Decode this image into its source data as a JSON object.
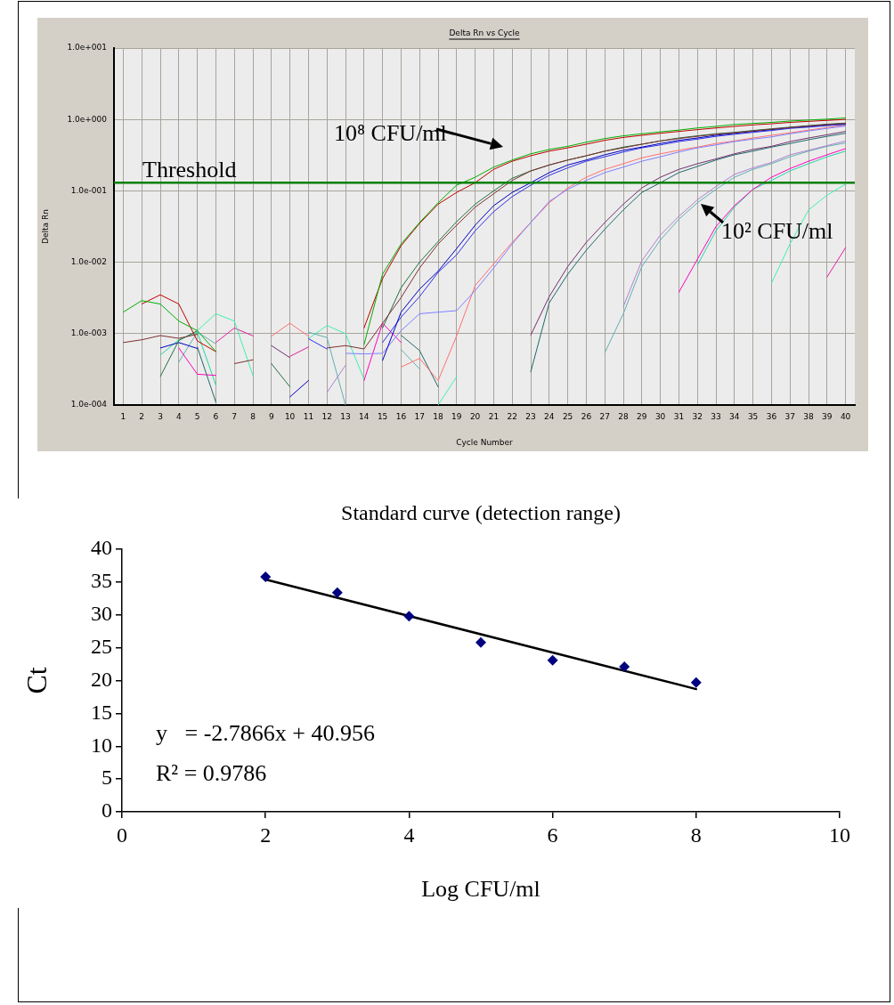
{
  "chart_data": [
    {
      "type": "line",
      "title": "Delta Rn vs Cycle",
      "xlabel": "Cycle Number",
      "ylabel": "Delta Rn",
      "x": [
        1,
        2,
        3,
        4,
        5,
        6,
        7,
        8,
        9,
        10,
        11,
        12,
        13,
        14,
        15,
        16,
        17,
        18,
        19,
        20,
        21,
        22,
        23,
        24,
        25,
        26,
        27,
        28,
        29,
        30,
        31,
        32,
        33,
        34,
        35,
        36,
        37,
        38,
        39,
        40
      ],
      "xlim": [
        0.5,
        40.5
      ],
      "xticks": [
        1,
        2,
        3,
        4,
        5,
        6,
        7,
        8,
        9,
        10,
        11,
        12,
        13,
        14,
        15,
        16,
        17,
        18,
        19,
        20,
        21,
        22,
        23,
        24,
        25,
        26,
        27,
        28,
        29,
        30,
        31,
        32,
        33,
        34,
        35,
        36,
        37,
        38,
        39,
        40
      ],
      "log": "y",
      "ylim": [
        0.0001,
        10
      ],
      "yticks": [
        {
          "value": 0.0001,
          "label": "1.0e-004"
        },
        {
          "value": 0.001,
          "label": "1.0e-003"
        },
        {
          "value": 0.01,
          "label": "1.0e-002"
        },
        {
          "value": 0.1,
          "label": "1.0e-001"
        },
        {
          "value": 1,
          "label": "1.0e+000"
        },
        {
          "value": 10,
          "label": "1.0e+001"
        }
      ],
      "grid": true,
      "legend": false,
      "marker": "none",
      "line_style": "solid",
      "ref_lines": [
        {
          "axis": "y",
          "value": 0.13,
          "label": "Threshold",
          "color": "#008000"
        }
      ],
      "annotations": [
        "10⁸ CFU/ml",
        "10² CFU/ml"
      ],
      "series": [
        {
          "color": "#00b000",
          "values": [
            0.002,
            0.0029,
            0.0026,
            0.0015,
            0.0011,
            0.00056,
            null,
            null,
            null,
            null,
            null,
            null,
            null,
            0.0007,
            0.0068,
            0.018,
            0.036,
            0.068,
            0.12,
            0.155,
            0.215,
            0.27,
            0.33,
            0.38,
            0.42,
            0.48,
            0.54,
            0.59,
            0.63,
            0.67,
            0.71,
            0.76,
            0.8,
            0.85,
            0.88,
            0.91,
            0.95,
            0.98,
            1.01,
            1.05
          ]
        },
        {
          "color": "#c00000",
          "values": [
            null,
            0.0026,
            0.0035,
            0.0026,
            0.00079,
            0.00056,
            null,
            null,
            null,
            null,
            null,
            null,
            null,
            0.0012,
            0.0059,
            0.017,
            0.035,
            0.065,
            0.095,
            0.13,
            0.2,
            0.26,
            0.31,
            0.36,
            0.4,
            0.45,
            0.51,
            0.56,
            0.6,
            0.64,
            0.68,
            0.72,
            0.76,
            0.8,
            0.84,
            0.87,
            0.91,
            0.94,
            0.97,
            1.0
          ]
        },
        {
          "color": "#803030",
          "values": [
            0.00075,
            0.00082,
            0.00094,
            0.00086,
            0.00098,
            null,
            0.00038,
            0.00043,
            null,
            null,
            null,
            0.00063,
            0.00068,
            0.00061,
            0.0014,
            0.0032,
            0.0083,
            0.018,
            0.033,
            0.059,
            0.091,
            0.14,
            0.19,
            0.23,
            0.27,
            0.31,
            0.36,
            0.4,
            0.45,
            0.5,
            0.54,
            0.58,
            0.62,
            0.65,
            0.69,
            0.73,
            0.77,
            0.81,
            0.85,
            0.88
          ]
        },
        {
          "color": "#207040",
          "values": [
            null,
            null,
            0.00025,
            0.0008,
            0.0011,
            null,
            null,
            null,
            0.00038,
            0.00018,
            null,
            null,
            null,
            null,
            0.0012,
            0.0044,
            0.01,
            0.0195,
            0.037,
            0.065,
            0.1,
            0.15,
            0.19,
            0.23,
            0.27,
            0.31,
            0.36,
            0.41,
            0.45,
            0.5,
            0.55,
            0.59,
            0.63,
            0.66,
            0.7,
            0.74,
            0.78,
            0.82,
            0.86,
            0.89
          ]
        },
        {
          "color": "#0000c0",
          "values": [
            null,
            null,
            0.00063,
            0.00075,
            0.00062,
            null,
            null,
            null,
            null,
            0.00013,
            0.00022,
            null,
            null,
            null,
            0.00042,
            0.002,
            0.0042,
            0.0075,
            0.0155,
            0.033,
            0.062,
            0.095,
            0.13,
            0.18,
            0.23,
            0.27,
            0.32,
            0.37,
            0.41,
            0.46,
            0.51,
            0.55,
            0.6,
            0.64,
            0.68,
            0.72,
            0.77,
            0.8,
            0.84,
            0.87
          ]
        },
        {
          "color": "#3030e8",
          "values": [
            null,
            null,
            null,
            null,
            null,
            null,
            null,
            null,
            null,
            null,
            0.00085,
            0.00061,
            null,
            null,
            0.00075,
            0.0017,
            0.0033,
            0.0072,
            0.0127,
            0.0275,
            0.051,
            0.083,
            0.12,
            0.165,
            0.21,
            0.26,
            0.3,
            0.35,
            0.4,
            0.44,
            0.49,
            0.53,
            0.58,
            0.62,
            0.66,
            0.7,
            0.75,
            0.78,
            0.82,
            0.85
          ]
        },
        {
          "color": "#8080ff",
          "values": [
            null,
            null,
            null,
            null,
            null,
            null,
            null,
            null,
            null,
            null,
            null,
            null,
            0.00053,
            0.00052,
            0.00053,
            0.0011,
            0.0019,
            0.002,
            0.0021,
            0.004,
            0.0083,
            0.018,
            0.036,
            0.071,
            0.105,
            0.14,
            0.18,
            0.215,
            0.26,
            0.3,
            0.35,
            0.4,
            0.44,
            0.49,
            0.53,
            0.57,
            0.63,
            0.69,
            0.75,
            0.81
          ]
        },
        {
          "color": "#ff7070",
          "values": [
            null,
            null,
            null,
            null,
            null,
            null,
            null,
            null,
            0.00092,
            0.0014,
            0.00092,
            null,
            null,
            null,
            null,
            0.00034,
            0.00045,
            0.00022,
            0.00093,
            0.0047,
            0.0095,
            0.019,
            0.036,
            0.068,
            0.11,
            0.155,
            0.2,
            0.24,
            0.29,
            0.33,
            0.37,
            0.41,
            0.46,
            0.5,
            0.55,
            0.6,
            0.65,
            0.71,
            0.77,
            0.83
          ]
        },
        {
          "color": "#703070",
          "values": [
            null,
            null,
            null,
            null,
            null,
            null,
            null,
            null,
            0.00068,
            0.00046,
            null,
            null,
            null,
            null,
            null,
            null,
            null,
            null,
            null,
            null,
            null,
            null,
            0.00095,
            0.0033,
            0.0087,
            0.019,
            0.036,
            0.065,
            0.11,
            0.155,
            0.2,
            0.24,
            0.28,
            0.33,
            0.38,
            0.42,
            0.49,
            0.55,
            0.61,
            0.68
          ]
        },
        {
          "color": "#206868",
          "values": [
            null,
            null,
            null,
            null,
            0.00065,
            0.00011,
            null,
            null,
            null,
            null,
            null,
            null,
            null,
            null,
            null,
            0.00095,
            0.00058,
            0.00018,
            null,
            null,
            null,
            null,
            0.00029,
            0.0027,
            0.0068,
            0.0147,
            0.029,
            0.054,
            0.095,
            0.13,
            0.18,
            0.22,
            0.27,
            0.32,
            0.36,
            0.41,
            0.46,
            0.52,
            0.58,
            0.64
          ]
        },
        {
          "color": "#b080d0",
          "values": [
            null,
            null,
            null,
            null,
            null,
            null,
            null,
            null,
            null,
            null,
            null,
            0.00015,
            0.00036,
            null,
            null,
            null,
            null,
            null,
            null,
            null,
            null,
            null,
            null,
            null,
            null,
            null,
            null,
            0.0024,
            0.0105,
            0.024,
            0.044,
            0.075,
            0.115,
            0.17,
            0.21,
            0.25,
            0.32,
            0.37,
            0.43,
            0.5
          ]
        },
        {
          "color": "#60b0b0",
          "values": [
            null,
            null,
            null,
            0.0004,
            0.00105,
            0.00072,
            null,
            null,
            null,
            null,
            0.00105,
            0.00088,
            0.0001,
            null,
            null,
            0.0006,
            0.00032,
            null,
            null,
            null,
            null,
            null,
            null,
            null,
            null,
            null,
            0.00054,
            0.0019,
            0.0087,
            0.0205,
            0.04,
            0.068,
            0.105,
            0.155,
            0.2,
            0.24,
            0.3,
            0.36,
            0.42,
            0.47
          ]
        },
        {
          "color": "#ff00c0",
          "values": [
            null,
            null,
            null,
            0.00063,
            0.00027,
            0.00026,
            null,
            null,
            null,
            null,
            null,
            null,
            null,
            0.00022,
            0.0014,
            0.00075,
            null,
            null,
            null,
            null,
            null,
            null,
            null,
            null,
            null,
            null,
            null,
            null,
            null,
            null,
            0.0038,
            0.011,
            0.0315,
            0.062,
            0.105,
            0.155,
            0.205,
            0.26,
            0.32,
            0.39
          ]
        },
        {
          "color": "#20d8a0",
          "values": [
            null,
            null,
            0.0005,
            0.00082,
            0.00105,
            0.00019,
            null,
            null,
            null,
            null,
            null,
            null,
            null,
            null,
            null,
            null,
            null,
            null,
            null,
            null,
            null,
            null,
            null,
            null,
            null,
            null,
            null,
            null,
            null,
            null,
            null,
            0.0091,
            0.0275,
            0.059,
            0.105,
            0.14,
            0.19,
            0.24,
            0.3,
            0.36
          ]
        },
        {
          "color": "#40f0b0",
          "values": [
            null,
            null,
            null,
            null,
            0.0011,
            0.0019,
            0.0015,
            0.00026,
            null,
            null,
            0.00085,
            0.0013,
            0.001,
            0.00023,
            null,
            null,
            null,
            0.0001,
            0.00025,
            null,
            null,
            null,
            null,
            null,
            null,
            null,
            null,
            null,
            null,
            null,
            null,
            null,
            null,
            null,
            null,
            0.0051,
            0.018,
            0.054,
            0.087,
            0.124
          ]
        },
        {
          "color": "#e020a0",
          "values": [
            null,
            null,
            null,
            null,
            null,
            0.00075,
            0.0012,
            0.00093,
            null,
            0.00048,
            0.00065,
            null,
            null,
            null,
            null,
            null,
            null,
            null,
            null,
            null,
            null,
            null,
            null,
            null,
            null,
            null,
            null,
            null,
            null,
            null,
            null,
            null,
            null,
            null,
            null,
            null,
            null,
            null,
            0.0062,
            0.016
          ]
        }
      ]
    },
    {
      "type": "scatter",
      "title": "Standard curve (detection range)",
      "xlabel": "Log CFU/ml",
      "ylabel": "Ct",
      "x": [
        2,
        3,
        4,
        5,
        6,
        7,
        8
      ],
      "xlim": [
        0,
        10
      ],
      "xticks": [
        0,
        2,
        4,
        6,
        8,
        10
      ],
      "ylim": [
        0,
        40
      ],
      "yticks": [
        0,
        5,
        10,
        15,
        20,
        25,
        30,
        35,
        40
      ],
      "grid": false,
      "legend": false,
      "marker": "diamond",
      "annotations": [
        "y   = -2.7866x + 40.956",
        "R² = 0.9786"
      ],
      "series": [
        {
          "color": "#000080",
          "values": [
            35.8,
            33.4,
            29.8,
            25.8,
            23.1,
            22.1,
            19.7
          ]
        },
        {
          "type": "line",
          "x": [
            2,
            8
          ],
          "values": [
            35.4,
            18.7
          ],
          "color": "#000000",
          "marker": "none"
        }
      ]
    }
  ]
}
